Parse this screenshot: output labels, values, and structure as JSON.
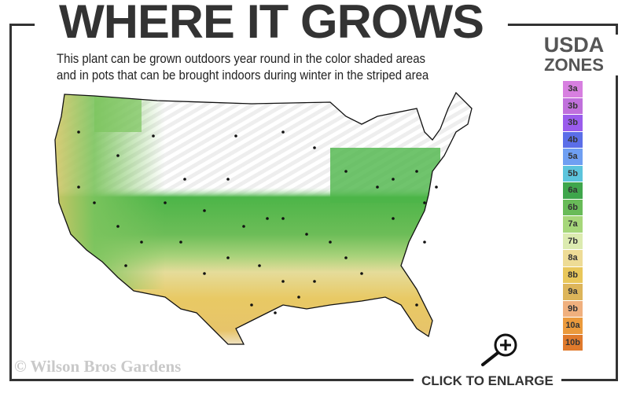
{
  "header": {
    "title": "WHERE IT GROWS",
    "subtitle_line1": "This plant can be grown outdoors year round in the color shaded areas",
    "subtitle_line2": "and in pots that can be brought indoors during winter in the striped area"
  },
  "legend": {
    "title_line1": "USDA",
    "title_line2": "ZONES",
    "zones": [
      {
        "label": "3a",
        "color": "#d77fe0"
      },
      {
        "label": "3b",
        "color": "#c070dc"
      },
      {
        "label": "3b",
        "color": "#9a5cec"
      },
      {
        "label": "4b",
        "color": "#5b6ee8"
      },
      {
        "label": "5a",
        "color": "#6f9ff2"
      },
      {
        "label": "5b",
        "color": "#5cc4dc"
      },
      {
        "label": "6a",
        "color": "#3fa64c"
      },
      {
        "label": "6b",
        "color": "#68bb58"
      },
      {
        "label": "7a",
        "color": "#a6d77a"
      },
      {
        "label": "7b",
        "color": "#dcebb0"
      },
      {
        "label": "8a",
        "color": "#eedc96"
      },
      {
        "label": "8b",
        "color": "#e9c75a"
      },
      {
        "label": "9a",
        "color": "#ddb55a"
      },
      {
        "label": "9b",
        "color": "#f0b07e"
      },
      {
        "label": "10a",
        "color": "#eb9a3c"
      },
      {
        "label": "10b",
        "color": "#e07a2c"
      }
    ]
  },
  "footer": {
    "copyright": "© Wilson Bros Gardens",
    "enlarge_label": "CLICK TO ENLARGE"
  },
  "icons": {
    "enlarge": "magnifier-plus-icon"
  }
}
